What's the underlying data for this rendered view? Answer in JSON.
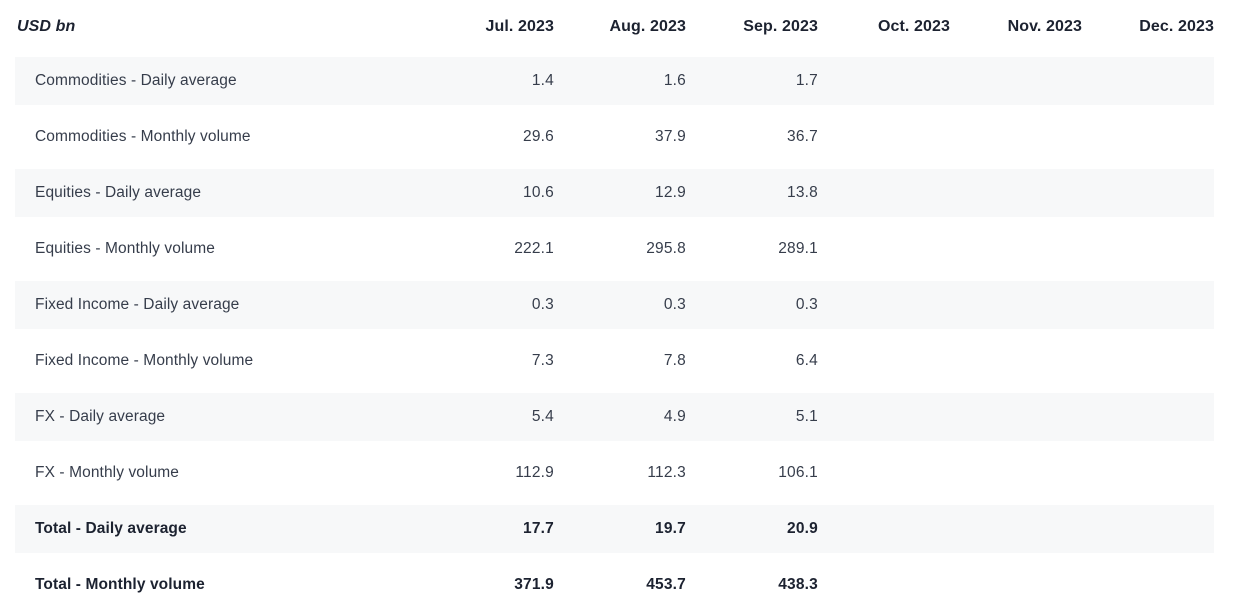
{
  "chart_data": {
    "type": "table",
    "unit_label": "USD bn",
    "columns": [
      "Jul. 2023",
      "Aug. 2023",
      "Sep. 2023",
      "Oct. 2023",
      "Nov. 2023",
      "Dec. 2023"
    ],
    "rows": [
      {
        "label": "Commodities - Daily average",
        "values": [
          "1.4",
          "1.6",
          "1.7",
          "",
          "",
          ""
        ],
        "bold": false
      },
      {
        "label": "Commodities - Monthly volume",
        "values": [
          "29.6",
          "37.9",
          "36.7",
          "",
          "",
          ""
        ],
        "bold": false
      },
      {
        "label": "Equities - Daily average",
        "values": [
          "10.6",
          "12.9",
          "13.8",
          "",
          "",
          ""
        ],
        "bold": false
      },
      {
        "label": "Equities - Monthly volume",
        "values": [
          "222.1",
          "295.8",
          "289.1",
          "",
          "",
          ""
        ],
        "bold": false
      },
      {
        "label": "Fixed Income - Daily average",
        "values": [
          "0.3",
          "0.3",
          "0.3",
          "",
          "",
          ""
        ],
        "bold": false
      },
      {
        "label": "Fixed Income - Monthly volume",
        "values": [
          "7.3",
          "7.8",
          "6.4",
          "",
          "",
          ""
        ],
        "bold": false
      },
      {
        "label": "FX - Daily average",
        "values": [
          "5.4",
          "4.9",
          "5.1",
          "",
          "",
          ""
        ],
        "bold": false
      },
      {
        "label": "FX - Monthly volume",
        "values": [
          "112.9",
          "112.3",
          "106.1",
          "",
          "",
          ""
        ],
        "bold": false
      },
      {
        "label": "Total - Daily average",
        "values": [
          "17.7",
          "19.7",
          "20.9",
          "",
          "",
          ""
        ],
        "bold": true
      },
      {
        "label": "Total - Monthly volume",
        "values": [
          "371.9",
          "453.7",
          "438.3",
          "",
          "",
          ""
        ],
        "bold": true
      }
    ],
    "colors": {
      "shaded_row_bg": "#f7f8f9",
      "header_text": "#1c2230",
      "body_text": "#363d4b"
    }
  }
}
